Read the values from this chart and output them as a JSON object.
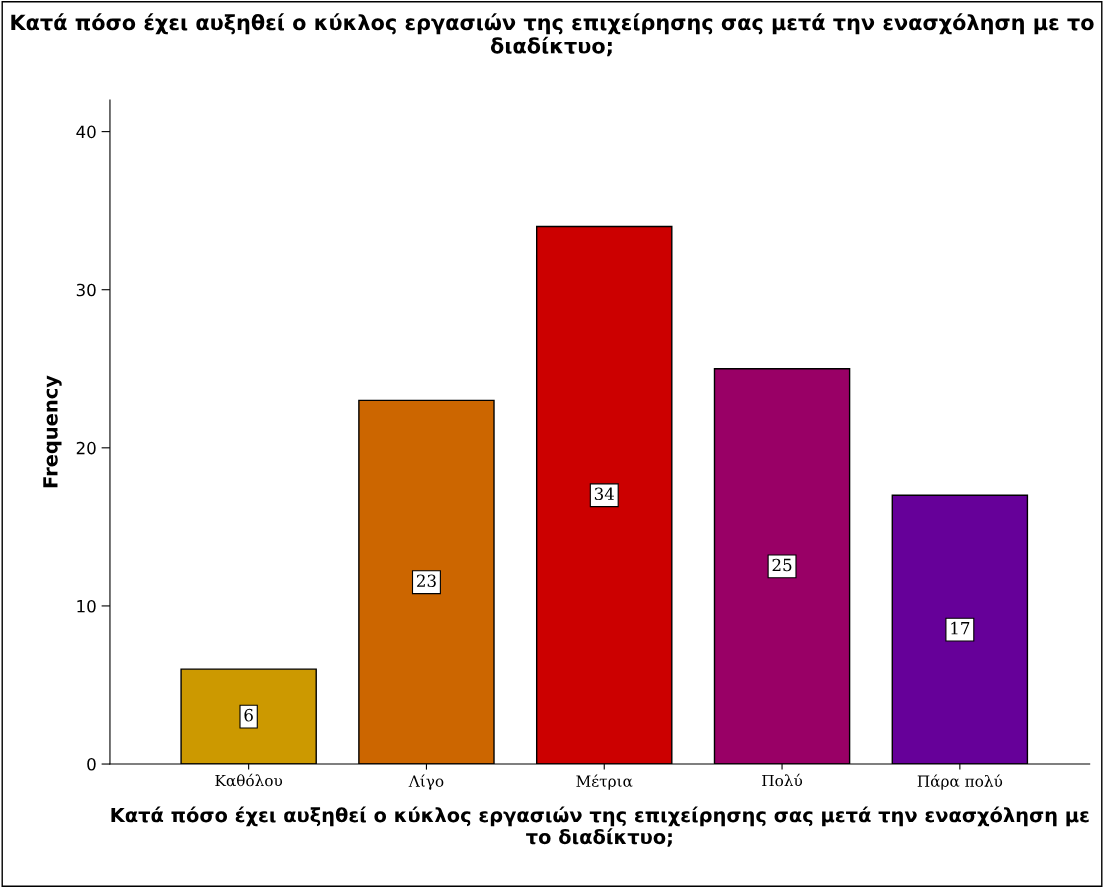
{
  "chart_data": {
    "type": "bar",
    "title": "Κατά πόσο έχει αυξηθεί ο κύκλος εργασιών της επιχείρησης σας μετά την ενασχόληση με το διαδίκτυο;",
    "xlabel": "Κατά πόσο έχει αυξηθεί ο κύκλος εργασιών της επιχείρησης σας μετά την ενασχόληση με το διαδίκτυο;",
    "ylabel": "Frequency",
    "categories": [
      "Καθόλου",
      "Λίγο",
      "Μέτρια",
      "Πολύ",
      "Πάρα πολύ"
    ],
    "values": [
      6,
      23,
      34,
      25,
      17
    ],
    "colors": [
      "#cc9900",
      "#cc6600",
      "#cc0000",
      "#990066",
      "#660099"
    ],
    "ylim": [
      0,
      42
    ],
    "yticks": [
      0,
      10,
      20,
      30,
      40
    ],
    "data_labels": true,
    "grid": false,
    "legend": false
  }
}
